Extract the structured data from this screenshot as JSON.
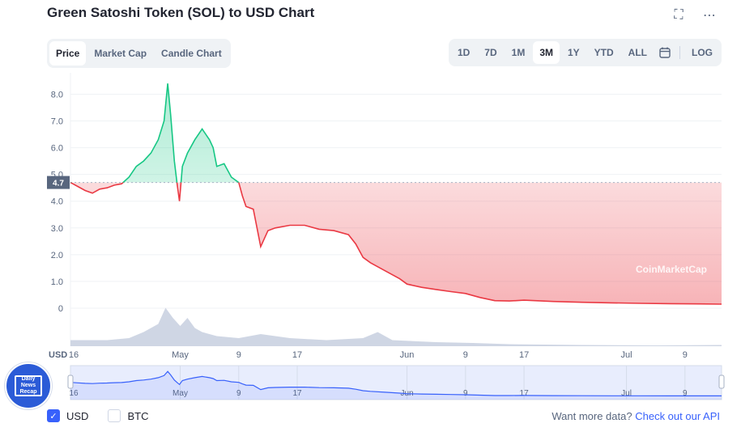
{
  "header": {
    "title": "Green Satoshi Token (SOL) to USD Chart",
    "fullscreen_icon": "expand-icon",
    "more_icon": "more-dots-icon"
  },
  "tabs": [
    {
      "label": "Price",
      "active": true
    },
    {
      "label": "Market Cap",
      "active": false
    },
    {
      "label": "Candle Chart",
      "active": false
    }
  ],
  "ranges": [
    {
      "label": "1D",
      "active": false
    },
    {
      "label": "7D",
      "active": false
    },
    {
      "label": "1M",
      "active": false
    },
    {
      "label": "3M",
      "active": true
    },
    {
      "label": "1Y",
      "active": false
    },
    {
      "label": "YTD",
      "active": false
    },
    {
      "label": "ALL",
      "active": false
    }
  ],
  "log_label": "LOG",
  "calendar_icon": "calendar-icon",
  "watermark": "CoinMarketCap",
  "currency_label": "USD",
  "current_price_label": "4.7",
  "news_badge": {
    "line1": "Daily",
    "line2": "News",
    "line3": "Recap"
  },
  "footer": {
    "usd_label": "USD",
    "usd_checked": true,
    "btc_label": "BTC",
    "btc_checked": false,
    "more_text": "Want more data?",
    "api_link": "Check out our API"
  },
  "colors": {
    "up": "#16c784",
    "down": "#ea3943",
    "accent": "#3861fb"
  },
  "chart_data": {
    "type": "line",
    "ylim": [
      0,
      8.8
    ],
    "yticks": [
      0,
      1.0,
      2.0,
      3.0,
      4.0,
      5.0,
      6.0,
      7.0,
      8.0
    ],
    "ytick_labels": [
      "0",
      "1.0",
      "2.0",
      "3.0",
      "4.0",
      "5.0",
      "6.0",
      "7.0",
      "8.0"
    ],
    "xticks": [
      {
        "label": "16",
        "pos": 0
      },
      {
        "label": "May",
        "pos": 15
      },
      {
        "label": "9",
        "pos": 23
      },
      {
        "label": "17",
        "pos": 31
      },
      {
        "label": "Jun",
        "pos": 46
      },
      {
        "label": "9",
        "pos": 54
      },
      {
        "label": "17",
        "pos": 62
      },
      {
        "label": "Jul",
        "pos": 76
      },
      {
        "label": "9",
        "pos": 84
      }
    ],
    "x_range": [
      0,
      89
    ],
    "baseline": 4.7,
    "series": [
      {
        "values": [
          [
            0,
            4.7
          ],
          [
            1,
            4.55
          ],
          [
            2,
            4.4
          ],
          [
            3,
            4.3
          ],
          [
            4,
            4.45
          ],
          [
            5,
            4.5
          ],
          [
            6,
            4.6
          ],
          [
            7,
            4.65
          ],
          [
            8,
            4.9
          ],
          [
            9,
            5.3
          ],
          [
            10,
            5.5
          ],
          [
            11,
            5.8
          ],
          [
            12,
            6.3
          ],
          [
            12.8,
            7.0
          ],
          [
            13.3,
            8.4
          ],
          [
            13.7,
            7.2
          ],
          [
            14.2,
            5.5
          ],
          [
            14.6,
            4.6
          ],
          [
            14.9,
            4.0
          ],
          [
            15.3,
            5.3
          ],
          [
            16,
            5.8
          ],
          [
            17,
            6.3
          ],
          [
            18,
            6.7
          ],
          [
            19,
            6.3
          ],
          [
            19.5,
            6.0
          ],
          [
            20,
            5.3
          ],
          [
            21,
            5.4
          ],
          [
            22,
            4.9
          ],
          [
            23,
            4.7
          ],
          [
            23.5,
            4.2
          ],
          [
            24,
            3.8
          ],
          [
            25,
            3.7
          ],
          [
            26,
            2.3
          ],
          [
            27,
            2.9
          ],
          [
            28,
            3.0
          ],
          [
            30,
            3.1
          ],
          [
            32,
            3.1
          ],
          [
            34,
            2.95
          ],
          [
            36,
            2.9
          ],
          [
            38,
            2.75
          ],
          [
            39,
            2.4
          ],
          [
            40,
            1.9
          ],
          [
            41,
            1.7
          ],
          [
            43,
            1.4
          ],
          [
            45,
            1.1
          ],
          [
            46,
            0.9
          ],
          [
            48,
            0.78
          ],
          [
            50,
            0.7
          ],
          [
            52,
            0.62
          ],
          [
            54,
            0.55
          ],
          [
            56,
            0.4
          ],
          [
            58,
            0.28
          ],
          [
            60,
            0.27
          ],
          [
            62,
            0.3
          ],
          [
            66,
            0.25
          ],
          [
            70,
            0.22
          ],
          [
            74,
            0.2
          ],
          [
            78,
            0.18
          ],
          [
            82,
            0.17
          ],
          [
            86,
            0.16
          ],
          [
            89,
            0.15
          ]
        ]
      }
    ],
    "volume": [
      [
        0,
        0.15
      ],
      [
        5,
        0.15
      ],
      [
        8,
        0.2
      ],
      [
        10,
        0.35
      ],
      [
        12,
        0.55
      ],
      [
        13,
        0.95
      ],
      [
        14,
        0.7
      ],
      [
        15,
        0.5
      ],
      [
        16,
        0.7
      ],
      [
        17,
        0.45
      ],
      [
        18,
        0.35
      ],
      [
        20,
        0.25
      ],
      [
        23,
        0.2
      ],
      [
        26,
        0.3
      ],
      [
        30,
        0.2
      ],
      [
        35,
        0.15
      ],
      [
        40,
        0.2
      ],
      [
        42,
        0.35
      ],
      [
        44,
        0.15
      ],
      [
        50,
        0.1
      ],
      [
        55,
        0.08
      ],
      [
        60,
        0.05
      ],
      [
        70,
        0.03
      ],
      [
        80,
        0.02
      ],
      [
        89,
        0.03
      ]
    ]
  }
}
